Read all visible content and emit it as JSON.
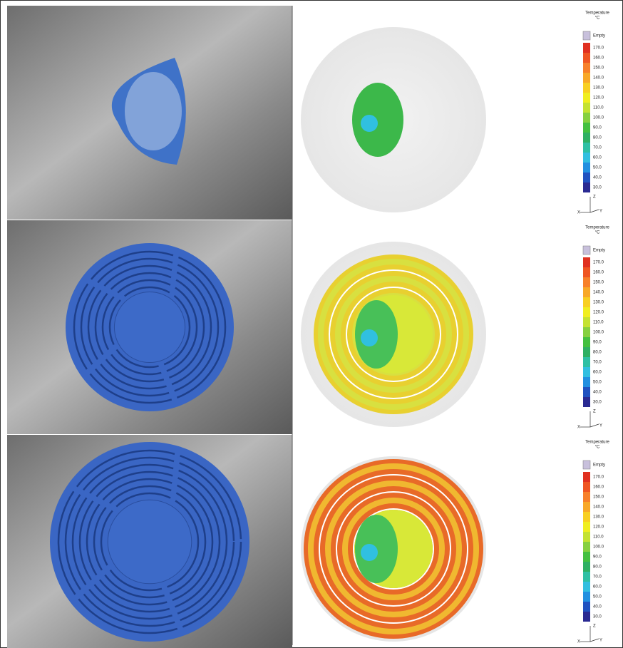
{
  "panels": [
    {
      "legend": {
        "title": "Temperature",
        "unit": "°C",
        "empty": "Empty",
        "labels": [
          "170.0",
          "160.0",
          "150.0",
          "140.0",
          "130.0",
          "120.0",
          "110.0",
          "100.0",
          "90.0",
          "80.0",
          "70.0",
          "60.0",
          "50.0",
          "40.0",
          "30.0"
        ]
      },
      "axes": {
        "z": "Z",
        "x": "X",
        "y": "Y"
      }
    },
    {
      "legend": {
        "title": "Temperature",
        "unit": "°C",
        "empty": "Empty",
        "labels": [
          "170.0",
          "160.0",
          "150.0",
          "140.0",
          "130.0",
          "120.0",
          "110.0",
          "100.0",
          "90.0",
          "80.0",
          "70.0",
          "60.0",
          "50.0",
          "40.0",
          "30.0"
        ]
      },
      "axes": {
        "z": "Z",
        "x": "X",
        "y": "Y"
      }
    },
    {
      "legend": {
        "title": "Temperature",
        "unit": "°C",
        "empty": "Empty",
        "labels": [
          "170.0",
          "160.0",
          "150.0",
          "140.0",
          "130.0",
          "120.0",
          "110.0",
          "100.0",
          "90.0",
          "80.0",
          "70.0",
          "60.0",
          "50.0",
          "40.0",
          "30.0"
        ]
      },
      "axes": {
        "z": "Z",
        "x": "X",
        "y": "Y"
      }
    }
  ]
}
